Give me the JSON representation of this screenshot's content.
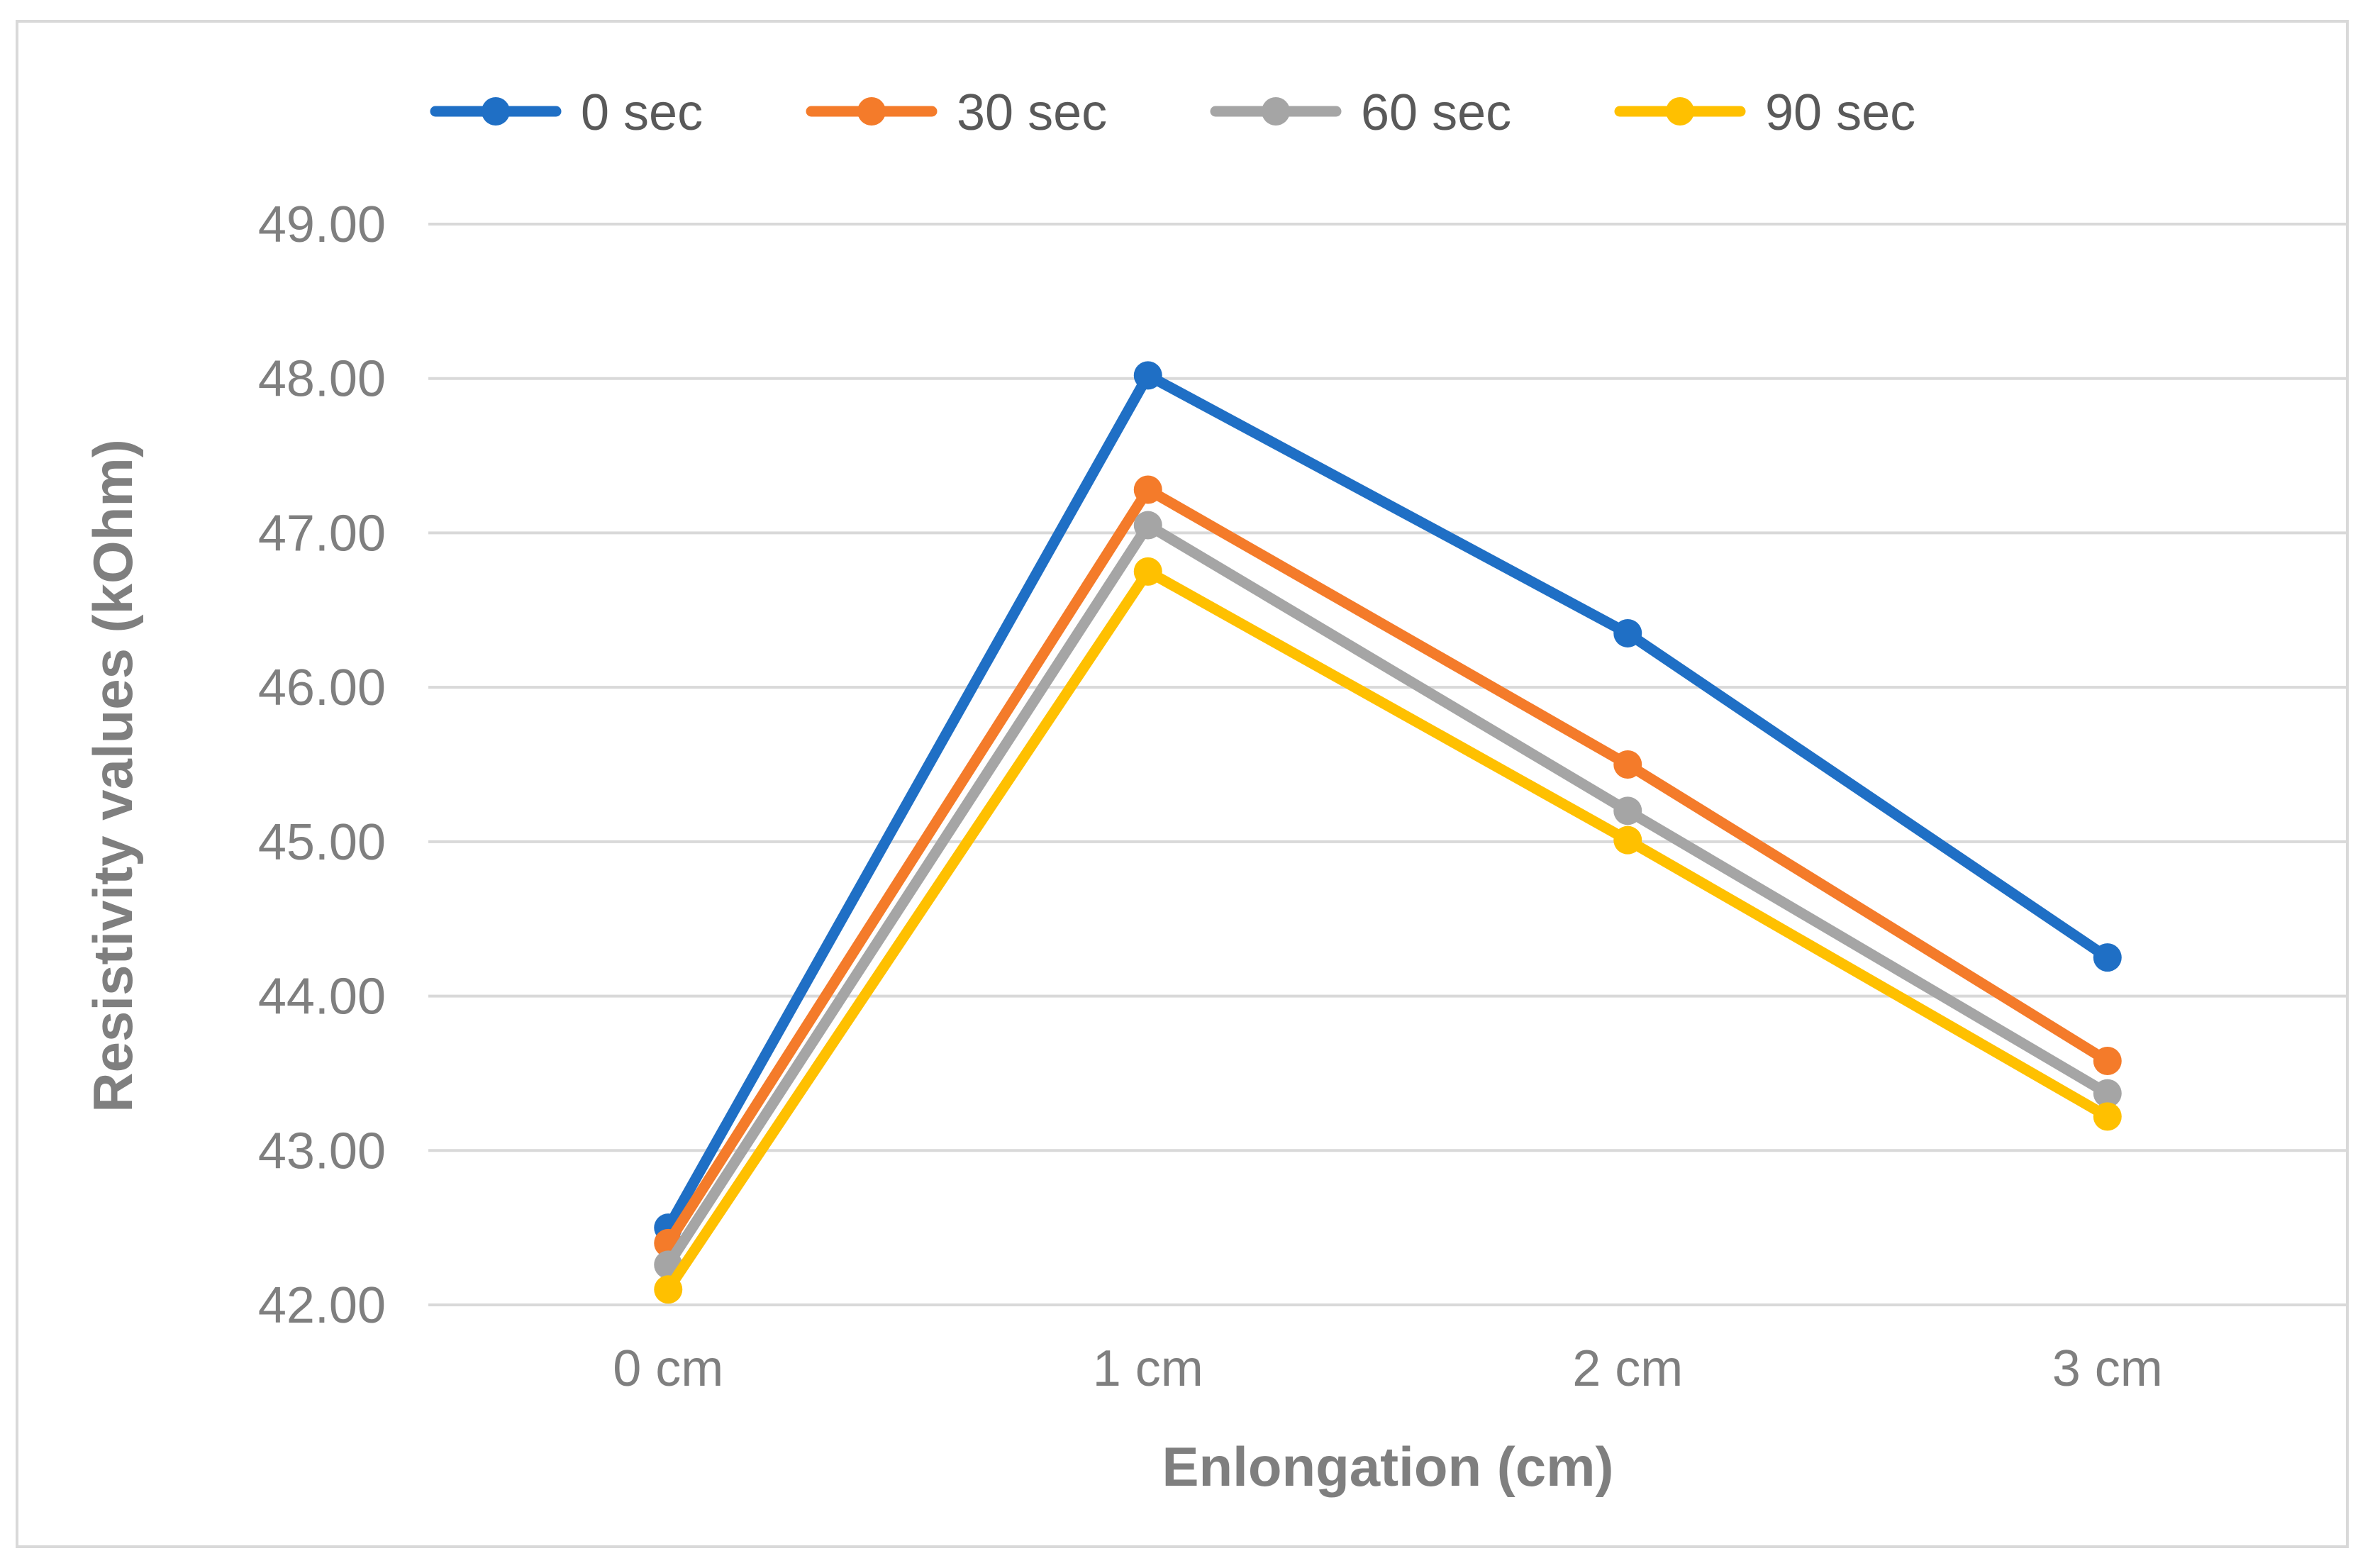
{
  "chart_data": {
    "type": "line",
    "title": "",
    "xlabel": "Enlongation (cm)",
    "ylabel": "Resistivity values (kOhm)",
    "categories": [
      "0 cm",
      "1 cm",
      "2 cm",
      "3 cm"
    ],
    "ylim": [
      42.0,
      49.0
    ],
    "yticks": [
      42.0,
      43.0,
      44.0,
      45.0,
      46.0,
      47.0,
      48.0,
      49.0
    ],
    "ytick_labels": [
      "42.00",
      "43.00",
      "44.00",
      "45.00",
      "46.00",
      "47.00",
      "48.00",
      "49.00"
    ],
    "grid": true,
    "legend_position": "top",
    "series": [
      {
        "name": "0 sec",
        "color": "#1f6fc5",
        "values": [
          42.5,
          48.02,
          46.35,
          44.25
        ]
      },
      {
        "name": "30 sec",
        "color": "#f47b2a",
        "values": [
          42.4,
          47.28,
          45.5,
          43.58
        ]
      },
      {
        "name": "60 sec",
        "color": "#a5a5a5",
        "values": [
          42.26,
          47.05,
          45.2,
          43.37
        ]
      },
      {
        "name": "90 sec",
        "color": "#ffc000",
        "values": [
          42.1,
          46.75,
          45.01,
          43.22
        ]
      }
    ]
  }
}
